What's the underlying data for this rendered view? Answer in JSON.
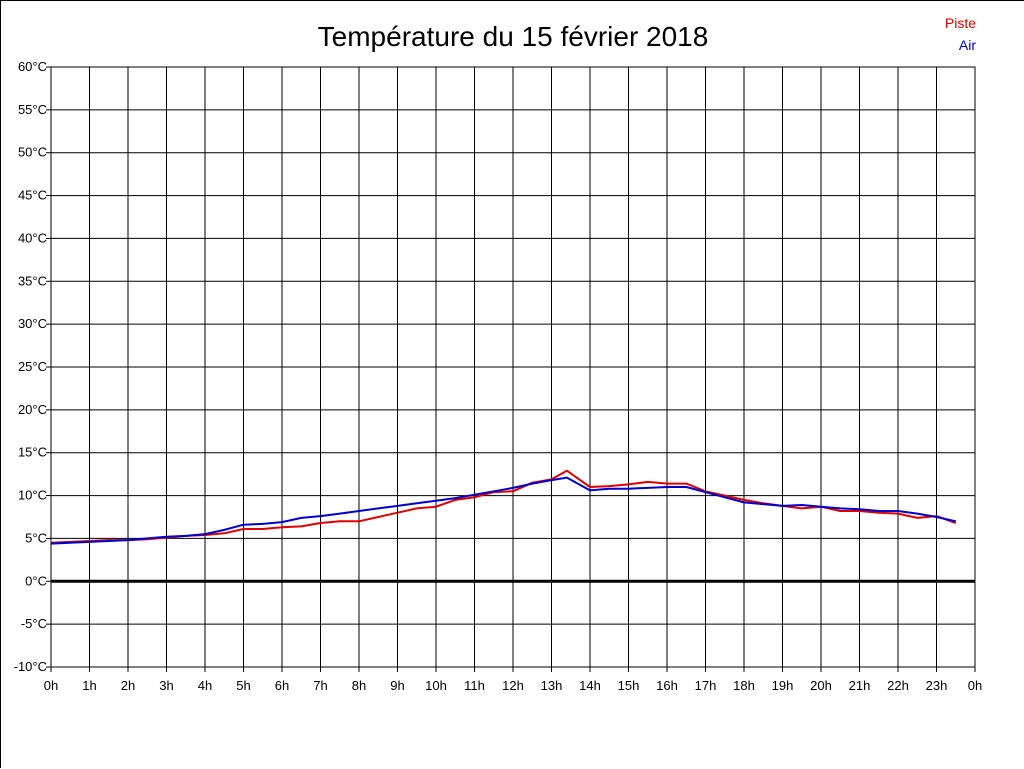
{
  "chart_data": {
    "type": "line",
    "title": "Température du 15 février 2018",
    "xlabel": "",
    "ylabel": "",
    "x_tick_labels": [
      "0h",
      "1h",
      "2h",
      "3h",
      "4h",
      "5h",
      "6h",
      "7h",
      "8h",
      "9h",
      "10h",
      "11h",
      "12h",
      "13h",
      "14h",
      "15h",
      "16h",
      "17h",
      "18h",
      "19h",
      "20h",
      "21h",
      "22h",
      "23h",
      "0h"
    ],
    "y_tick_labels": [
      "60°C",
      "55°C",
      "50°C",
      "45°C",
      "40°C",
      "35°C",
      "30°C",
      "25°C",
      "20°C",
      "15°C",
      "10°C",
      "5°C",
      "0°C",
      "-5°C",
      "-10°C"
    ],
    "y_ticks": [
      60,
      55,
      50,
      45,
      40,
      35,
      30,
      25,
      20,
      15,
      10,
      5,
      0,
      -5,
      -10
    ],
    "xlim": [
      0,
      24
    ],
    "ylim": [
      -10,
      60
    ],
    "grid": true,
    "legend_position": "top-right",
    "series": [
      {
        "name": "Piste",
        "color": "#dd0000",
        "x": [
          0,
          0.5,
          1,
          1.5,
          2,
          2.5,
          3,
          3.5,
          4,
          4.5,
          5,
          5.5,
          6,
          6.5,
          7,
          7.5,
          8,
          8.5,
          9,
          9.5,
          10,
          10.5,
          11,
          11.5,
          12,
          12.5,
          13,
          13.4,
          14,
          14.5,
          15,
          15.5,
          16,
          16.5,
          17,
          17.5,
          18,
          18.5,
          19,
          19.5,
          20,
          20.5,
          21,
          21.5,
          22,
          22.5,
          23,
          23.5
        ],
        "y": [
          4.5,
          4.6,
          4.7,
          4.8,
          4.8,
          4.9,
          5.1,
          5.3,
          5.4,
          5.6,
          6.1,
          6.1,
          6.3,
          6.4,
          6.8,
          7.0,
          7.0,
          7.5,
          8.0,
          8.5,
          8.7,
          9.5,
          9.8,
          10.4,
          10.5,
          11.5,
          11.9,
          12.9,
          11.0,
          11.1,
          11.3,
          11.6,
          11.4,
          11.4,
          10.5,
          10.0,
          9.5,
          9.1,
          8.8,
          8.5,
          8.7,
          8.2,
          8.2,
          8.0,
          7.9,
          7.4,
          7.6,
          6.8
        ]
      },
      {
        "name": "Air",
        "color": "#0000cc",
        "x": [
          0,
          0.5,
          1,
          1.5,
          2,
          2.5,
          3,
          3.5,
          4,
          4.5,
          5,
          5.5,
          6,
          6.5,
          7,
          7.5,
          8,
          8.5,
          9,
          9.5,
          10,
          10.5,
          11,
          11.5,
          12,
          12.5,
          13,
          13.4,
          14,
          14.5,
          15,
          15.5,
          16,
          16.5,
          17,
          17.5,
          18,
          18.5,
          19,
          19.5,
          20,
          20.5,
          21,
          21.5,
          22,
          22.5,
          23,
          23.5
        ],
        "y": [
          4.4,
          4.5,
          4.6,
          4.7,
          4.8,
          5.0,
          5.2,
          5.3,
          5.5,
          6.0,
          6.6,
          6.7,
          6.9,
          7.4,
          7.6,
          7.9,
          8.2,
          8.5,
          8.8,
          9.1,
          9.4,
          9.7,
          10.1,
          10.5,
          10.9,
          11.4,
          11.8,
          12.1,
          10.6,
          10.8,
          10.8,
          10.9,
          11.0,
          11.0,
          10.4,
          9.8,
          9.2,
          9.0,
          8.8,
          8.9,
          8.7,
          8.5,
          8.4,
          8.2,
          8.2,
          7.9,
          7.5,
          7.0
        ]
      }
    ]
  }
}
